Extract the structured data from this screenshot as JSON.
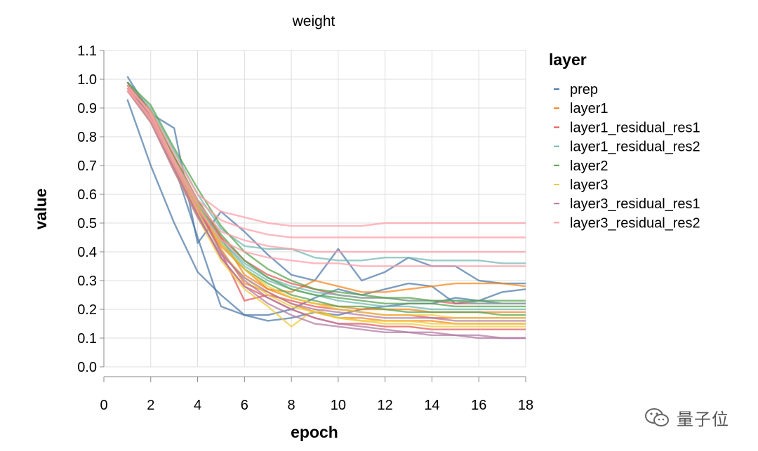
{
  "chart_data": {
    "type": "line",
    "title": "weight",
    "xlabel": "epoch",
    "ylabel": "value",
    "xlim": [
      0,
      18
    ],
    "ylim": [
      0,
      1.1
    ],
    "x_ticks": [
      "0",
      "2",
      "4",
      "6",
      "8",
      "10",
      "12",
      "14",
      "16",
      "18"
    ],
    "y_ticks": [
      "0.0",
      "0.1",
      "0.2",
      "0.3",
      "0.4",
      "0.5",
      "0.6",
      "0.7",
      "0.8",
      "0.9",
      "1.0",
      "1.1"
    ],
    "grid": true,
    "legend_position": "right",
    "legend_title": "layer",
    "x": [
      1,
      2,
      3,
      4,
      5,
      6,
      7,
      8,
      9,
      10,
      11,
      12,
      13,
      14,
      15,
      16,
      17,
      18
    ],
    "series": [
      {
        "name": "prep",
        "color": "#4c78a8",
        "values": [
          1.01,
          0.88,
          0.83,
          0.43,
          0.54,
          0.47,
          0.39,
          0.32,
          0.3,
          0.41,
          0.3,
          0.33,
          0.38,
          0.35,
          0.35,
          0.3,
          0.29,
          0.29
        ]
      },
      {
        "name": "prep",
        "color": "#4c78a8",
        "values": [
          0.93,
          0.7,
          0.5,
          0.33,
          0.25,
          0.18,
          0.16,
          0.17,
          0.19,
          0.18,
          0.2,
          0.21,
          0.22,
          0.22,
          0.24,
          0.23,
          0.26,
          0.27
        ]
      },
      {
        "name": "prep",
        "color": "#4c78a8",
        "values": [
          0.99,
          0.87,
          0.7,
          0.45,
          0.21,
          0.18,
          0.18,
          0.2,
          0.24,
          0.27,
          0.25,
          0.27,
          0.29,
          0.28,
          0.22,
          0.23,
          0.22,
          0.22
        ]
      },
      {
        "name": "layer1",
        "color": "#f58518",
        "values": [
          0.98,
          0.89,
          0.73,
          0.58,
          0.45,
          0.32,
          0.27,
          0.26,
          0.3,
          0.28,
          0.26,
          0.26,
          0.27,
          0.28,
          0.29,
          0.29,
          0.29,
          0.28
        ]
      },
      {
        "name": "layer1",
        "color": "#f58518",
        "values": [
          0.96,
          0.88,
          0.7,
          0.55,
          0.42,
          0.34,
          0.27,
          0.24,
          0.22,
          0.21,
          0.2,
          0.2,
          0.2,
          0.19,
          0.19,
          0.19,
          0.19,
          0.19
        ]
      },
      {
        "name": "layer1",
        "color": "#f58518",
        "values": [
          0.97,
          0.86,
          0.69,
          0.54,
          0.41,
          0.29,
          0.26,
          0.22,
          0.19,
          0.17,
          0.17,
          0.16,
          0.16,
          0.16,
          0.15,
          0.15,
          0.15,
          0.15
        ]
      },
      {
        "name": "layer1_residual_res1",
        "color": "#e45756",
        "values": [
          0.98,
          0.87,
          0.71,
          0.56,
          0.4,
          0.23,
          0.25,
          0.23,
          0.21,
          0.2,
          0.19,
          0.18,
          0.18,
          0.17,
          0.17,
          0.17,
          0.17,
          0.17
        ]
      },
      {
        "name": "layer1_residual_res1",
        "color": "#e45756",
        "values": [
          0.97,
          0.86,
          0.69,
          0.53,
          0.38,
          0.28,
          0.24,
          0.2,
          0.17,
          0.15,
          0.15,
          0.14,
          0.14,
          0.13,
          0.13,
          0.13,
          0.13,
          0.13
        ]
      },
      {
        "name": "layer1_residual_res1",
        "color": "#e45756",
        "values": [
          0.99,
          0.89,
          0.73,
          0.57,
          0.45,
          0.37,
          0.32,
          0.29,
          0.27,
          0.25,
          0.24,
          0.24,
          0.23,
          0.23,
          0.22,
          0.22,
          0.22,
          0.22
        ]
      },
      {
        "name": "layer1_residual_res2",
        "color": "#72b7b2",
        "values": [
          0.99,
          0.9,
          0.75,
          0.6,
          0.48,
          0.42,
          0.41,
          0.41,
          0.38,
          0.37,
          0.37,
          0.38,
          0.38,
          0.37,
          0.37,
          0.37,
          0.36,
          0.36
        ]
      },
      {
        "name": "layer1_residual_res2",
        "color": "#72b7b2",
        "values": [
          0.97,
          0.87,
          0.71,
          0.56,
          0.44,
          0.36,
          0.31,
          0.28,
          0.26,
          0.25,
          0.24,
          0.24,
          0.23,
          0.23,
          0.23,
          0.22,
          0.22,
          0.22
        ]
      },
      {
        "name": "layer1_residual_res2",
        "color": "#72b7b2",
        "values": [
          0.98,
          0.88,
          0.72,
          0.57,
          0.44,
          0.35,
          0.3,
          0.27,
          0.25,
          0.23,
          0.22,
          0.21,
          0.21,
          0.2,
          0.2,
          0.2,
          0.2,
          0.2
        ]
      },
      {
        "name": "layer2",
        "color": "#54a24b",
        "values": [
          0.99,
          0.91,
          0.76,
          0.62,
          0.49,
          0.4,
          0.34,
          0.3,
          0.27,
          0.26,
          0.25,
          0.24,
          0.24,
          0.23,
          0.23,
          0.23,
          0.23,
          0.23
        ]
      },
      {
        "name": "layer2",
        "color": "#54a24b",
        "values": [
          0.98,
          0.89,
          0.73,
          0.58,
          0.46,
          0.37,
          0.31,
          0.27,
          0.25,
          0.24,
          0.23,
          0.22,
          0.22,
          0.22,
          0.21,
          0.21,
          0.21,
          0.21
        ]
      },
      {
        "name": "layer2",
        "color": "#54a24b",
        "values": [
          0.97,
          0.87,
          0.71,
          0.56,
          0.43,
          0.34,
          0.29,
          0.25,
          0.23,
          0.21,
          0.21,
          0.2,
          0.19,
          0.19,
          0.19,
          0.19,
          0.18,
          0.18
        ]
      },
      {
        "name": "layer3",
        "color": "#eeca3b",
        "values": [
          0.96,
          0.85,
          0.68,
          0.52,
          0.37,
          0.27,
          0.21,
          0.14,
          0.2,
          0.17,
          0.16,
          0.15,
          0.15,
          0.14,
          0.14,
          0.14,
          0.14,
          0.14
        ]
      },
      {
        "name": "layer3",
        "color": "#eeca3b",
        "values": [
          0.97,
          0.86,
          0.69,
          0.54,
          0.4,
          0.31,
          0.25,
          0.21,
          0.19,
          0.17,
          0.16,
          0.16,
          0.16,
          0.15,
          0.15,
          0.15,
          0.15,
          0.15
        ]
      },
      {
        "name": "layer3",
        "color": "#eeca3b",
        "values": [
          0.98,
          0.88,
          0.71,
          0.56,
          0.43,
          0.34,
          0.28,
          0.24,
          0.22,
          0.2,
          0.19,
          0.18,
          0.18,
          0.18,
          0.17,
          0.17,
          0.17,
          0.17
        ]
      },
      {
        "name": "layer3_residual_res1",
        "color": "#b279a2",
        "values": [
          0.97,
          0.86,
          0.69,
          0.53,
          0.38,
          0.28,
          0.22,
          0.18,
          0.15,
          0.14,
          0.13,
          0.12,
          0.12,
          0.11,
          0.11,
          0.1,
          0.1,
          0.1
        ]
      },
      {
        "name": "layer3_residual_res1",
        "color": "#b279a2",
        "values": [
          0.98,
          0.87,
          0.7,
          0.55,
          0.4,
          0.3,
          0.24,
          0.2,
          0.17,
          0.15,
          0.14,
          0.13,
          0.12,
          0.12,
          0.11,
          0.11,
          0.1,
          0.1
        ]
      },
      {
        "name": "layer3_residual_res1",
        "color": "#b279a2",
        "values": [
          0.96,
          0.85,
          0.68,
          0.52,
          0.39,
          0.31,
          0.26,
          0.22,
          0.2,
          0.19,
          0.18,
          0.17,
          0.17,
          0.17,
          0.16,
          0.16,
          0.16,
          0.16
        ]
      },
      {
        "name": "layer3_residual_res2",
        "color": "#ff9da6",
        "values": [
          0.97,
          0.89,
          0.74,
          0.6,
          0.54,
          0.52,
          0.5,
          0.49,
          0.49,
          0.49,
          0.49,
          0.5,
          0.5,
          0.5,
          0.5,
          0.5,
          0.5,
          0.5
        ]
      },
      {
        "name": "layer3_residual_res2",
        "color": "#ff9da6",
        "values": [
          0.98,
          0.88,
          0.72,
          0.58,
          0.51,
          0.48,
          0.46,
          0.45,
          0.45,
          0.45,
          0.45,
          0.45,
          0.45,
          0.45,
          0.45,
          0.45,
          0.45,
          0.45
        ]
      },
      {
        "name": "layer3_residual_res2",
        "color": "#ff9da6",
        "values": [
          0.96,
          0.87,
          0.71,
          0.57,
          0.47,
          0.44,
          0.42,
          0.41,
          0.4,
          0.4,
          0.4,
          0.4,
          0.4,
          0.4,
          0.4,
          0.4,
          0.4,
          0.4
        ]
      },
      {
        "name": "layer3_residual_res2",
        "color": "#ff9da6",
        "values": [
          0.97,
          0.86,
          0.7,
          0.55,
          0.44,
          0.4,
          0.38,
          0.37,
          0.36,
          0.36,
          0.35,
          0.35,
          0.35,
          0.35,
          0.35,
          0.35,
          0.35,
          0.35
        ]
      }
    ],
    "legend": [
      {
        "label": "prep",
        "color": "#4c78a8"
      },
      {
        "label": "layer1",
        "color": "#f58518"
      },
      {
        "label": "layer1_residual_res1",
        "color": "#e45756"
      },
      {
        "label": "layer1_residual_res2",
        "color": "#72b7b2"
      },
      {
        "label": "layer2",
        "color": "#54a24b"
      },
      {
        "label": "layer3",
        "color": "#eeca3b"
      },
      {
        "label": "layer3_residual_res1",
        "color": "#b279a2"
      },
      {
        "label": "layer3_residual_res2",
        "color": "#ff9da6"
      }
    ]
  },
  "watermark": {
    "text": "量子位"
  }
}
